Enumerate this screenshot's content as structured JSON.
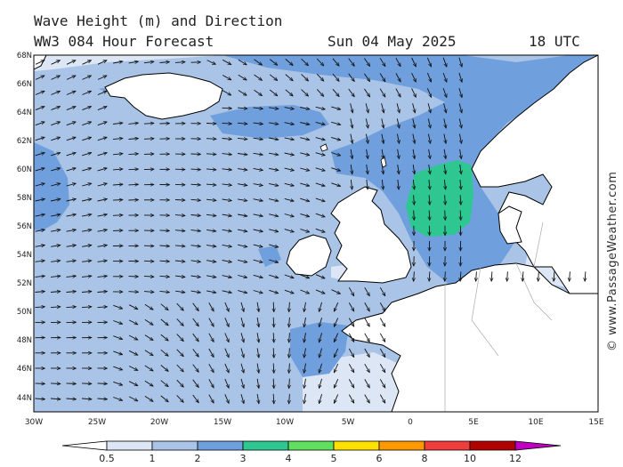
{
  "header": {
    "title": "Wave Height (m) and Direction",
    "model": "WW3 084 Hour Forecast",
    "date": "Sun 04 May 2025",
    "time": "18 UTC"
  },
  "credit": "© www.PassageWeather.com",
  "map": {
    "lat_labels": [
      "68N",
      "66N",
      "64N",
      "62N",
      "60N",
      "58N",
      "56N",
      "54N",
      "52N",
      "50N",
      "48N",
      "46N",
      "44N"
    ],
    "lon_labels": [
      "30W",
      "25W",
      "20W",
      "15W",
      "10W",
      "5W",
      "0",
      "5E",
      "10E",
      "15E"
    ],
    "lat_range": [
      43,
      68
    ],
    "lon_range": [
      -30,
      15
    ],
    "colors": {
      "land": "#ffffff",
      "band_0_5_1": "#dce6f4",
      "band_1_2": "#a9c4e6",
      "band_2_3": "#6f9fdc",
      "band_3_4": "#2fc791",
      "coast": "#000000"
    }
  },
  "colorbar": {
    "labels": [
      "0.5",
      "1",
      "2",
      "3",
      "4",
      "5",
      "6",
      "8",
      "10",
      "12"
    ],
    "colors": [
      "#ffffff",
      "#dce6f4",
      "#a9c4e6",
      "#6f9fdc",
      "#2fc791",
      "#5fe05f",
      "#ffe000",
      "#ff9900",
      "#ef3d3d",
      "#b00000",
      "#c000c0"
    ]
  }
}
